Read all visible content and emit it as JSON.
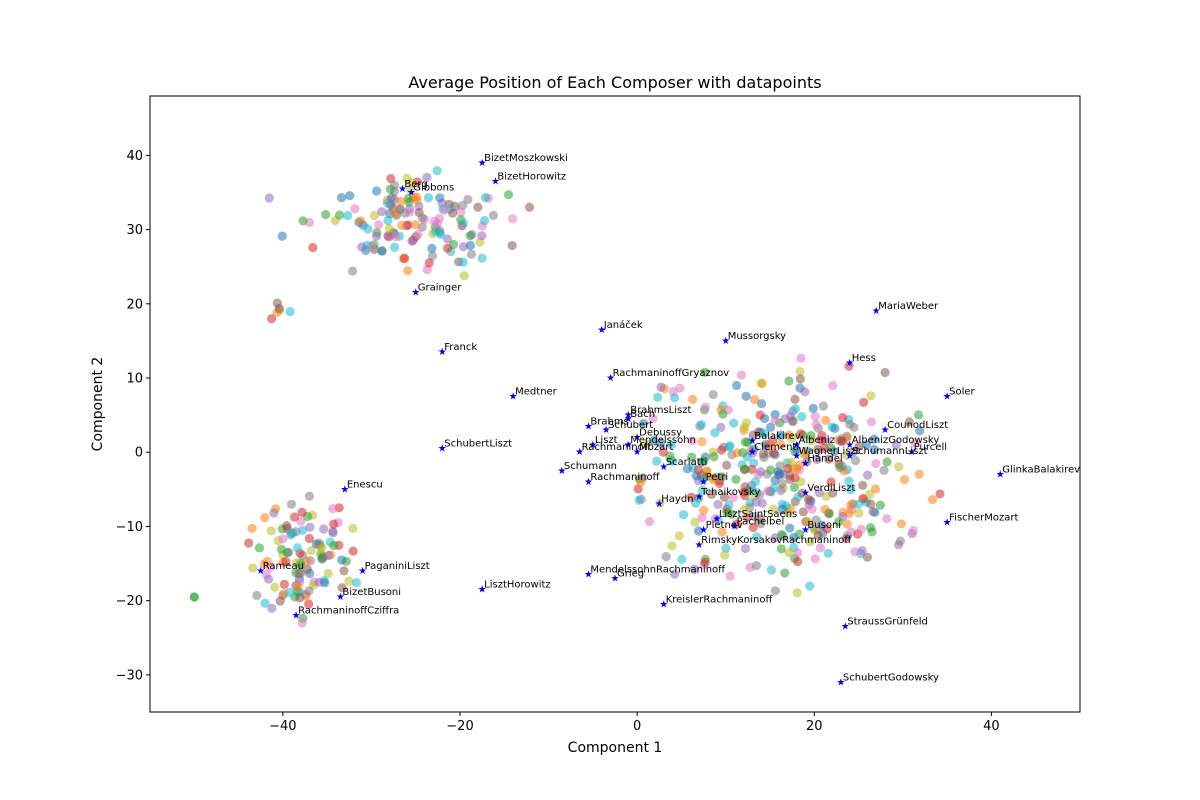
{
  "chart_data": {
    "type": "scatter",
    "title": "Average Position of Each Composer with datapoints",
    "xlabel": "Component 1",
    "ylabel": "Component 2",
    "xlim": [
      -55,
      50
    ],
    "ylim": [
      -35,
      48
    ],
    "xticks": [
      -40,
      -20,
      0,
      20,
      40
    ],
    "yticks": [
      -30,
      -20,
      -10,
      0,
      10,
      20,
      30,
      40
    ],
    "xtick_labels": [
      "−40",
      "−20",
      "0",
      "20",
      "40"
    ],
    "ytick_labels": [
      "−30",
      "−20",
      "−10",
      "0",
      "10",
      "20",
      "30",
      "40"
    ],
    "grid": false,
    "legend": "none",
    "point_colors": [
      "#1f77b4",
      "#ff7f0e",
      "#2ca02c",
      "#d62728",
      "#9467bd",
      "#8c564b",
      "#e377c2",
      "#7f7f7f",
      "#bcbd22",
      "#17becf"
    ],
    "point_alpha": 0.55,
    "marker_color": "#0000ff",
    "composers": [
      {
        "name": "BizetMoszkowski",
        "x": -17.5,
        "y": 39
      },
      {
        "name": "Berg",
        "x": -26.5,
        "y": 35.5
      },
      {
        "name": "Gibbons",
        "x": -25.5,
        "y": 35
      },
      {
        "name": "BizetHorowitz",
        "x": -16,
        "y": 36.5
      },
      {
        "name": "Grainger",
        "x": -25,
        "y": 21.5
      },
      {
        "name": "Franck",
        "x": -22,
        "y": 13.5
      },
      {
        "name": "Janáček",
        "x": -4,
        "y": 16.5
      },
      {
        "name": "Mussorgsky",
        "x": 10,
        "y": 15
      },
      {
        "name": "MariaWeber",
        "x": 27,
        "y": 19
      },
      {
        "name": "Hess",
        "x": 24,
        "y": 12
      },
      {
        "name": "RachmaninoffGryaznov",
        "x": -3,
        "y": 10
      },
      {
        "name": "Medtner",
        "x": -14,
        "y": 7.5
      },
      {
        "name": "Soler",
        "x": 35,
        "y": 7.5
      },
      {
        "name": "BrahmsLiszt",
        "x": -1,
        "y": 5
      },
      {
        "name": "Bach",
        "x": -1,
        "y": 4.5
      },
      {
        "name": "Brahms",
        "x": -5.5,
        "y": 3.5
      },
      {
        "name": "Schubert",
        "x": -3.5,
        "y": 3
      },
      {
        "name": "Debussy",
        "x": 0,
        "y": 2
      },
      {
        "name": "CounodLiszt",
        "x": 28,
        "y": 3
      },
      {
        "name": "Liszt",
        "x": -5,
        "y": 1
      },
      {
        "name": "Mendelssohn",
        "x": -1,
        "y": 1
      },
      {
        "name": "Balakirev",
        "x": 13,
        "y": 1.5
      },
      {
        "name": "Albeniz",
        "x": 18,
        "y": 1
      },
      {
        "name": "AlbenizGodowsky",
        "x": 24,
        "y": 1
      },
      {
        "name": "Rachmaninoff",
        "x": -6.5,
        "y": 0
      },
      {
        "name": "Mozart",
        "x": 0,
        "y": 0
      },
      {
        "name": "Clementi",
        "x": 13,
        "y": 0
      },
      {
        "name": "WagnerLiszt",
        "x": 18,
        "y": -0.5
      },
      {
        "name": "SchumannLiszt",
        "x": 24,
        "y": -0.5
      },
      {
        "name": "Purcell",
        "x": 31,
        "y": 0
      },
      {
        "name": "SchubertLiszt",
        "x": -22,
        "y": 0.5
      },
      {
        "name": "Handel",
        "x": 19,
        "y": -1.5
      },
      {
        "name": "Scarlatti",
        "x": 3,
        "y": -2
      },
      {
        "name": "Schumann",
        "x": -8.5,
        "y": -2.5
      },
      {
        "name": "Rachmaninoff",
        "x": -5.5,
        "y": -4
      },
      {
        "name": "Petri",
        "x": 7.5,
        "y": -4
      },
      {
        "name": "GlinkaBalakirev",
        "x": 41,
        "y": -3
      },
      {
        "name": "Enescu",
        "x": -33,
        "y": -5
      },
      {
        "name": "VerdiLiszt",
        "x": 19,
        "y": -5.5
      },
      {
        "name": "Tchaikovsky",
        "x": 7,
        "y": -6
      },
      {
        "name": "Haydn",
        "x": 2.5,
        "y": -7
      },
      {
        "name": "LisztSaintSaens",
        "x": 9,
        "y": -9
      },
      {
        "name": "FischerMozart",
        "x": 35,
        "y": -9.5
      },
      {
        "name": "Pachelbel",
        "x": 11,
        "y": -10
      },
      {
        "name": "Pletnev",
        "x": 7.5,
        "y": -10.5
      },
      {
        "name": "Busoni",
        "x": 19,
        "y": -10.5
      },
      {
        "name": "RimskyKorsakovRachmaninoff",
        "x": 7,
        "y": -12.5
      },
      {
        "name": "Rameau",
        "x": -42.5,
        "y": -16
      },
      {
        "name": "PaganiniLiszt",
        "x": -31,
        "y": -16
      },
      {
        "name": "MendelssohnRachmaninoff",
        "x": -5.5,
        "y": -16.5
      },
      {
        "name": "Grieg",
        "x": -2.5,
        "y": -17
      },
      {
        "name": "LisztHorowitz",
        "x": -17.5,
        "y": -18.5
      },
      {
        "name": "BizetBusoni",
        "x": -33.5,
        "y": -19.5
      },
      {
        "name": "KreislerRachmaninoff",
        "x": 3,
        "y": -20.5
      },
      {
        "name": "RachmaninoffCziffra",
        "x": -38.5,
        "y": -22
      },
      {
        "name": "StraussGrünfeld",
        "x": 23.5,
        "y": -23.5
      },
      {
        "name": "SchubertGodowsky",
        "x": 23,
        "y": -31
      }
    ]
  }
}
